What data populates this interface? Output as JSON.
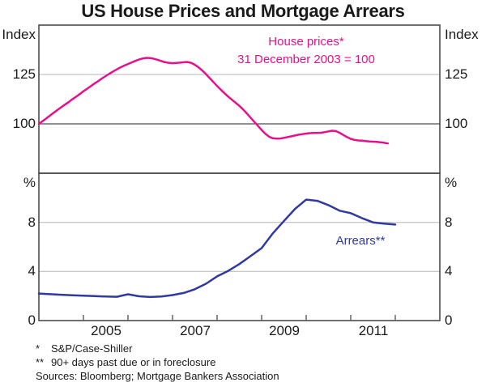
{
  "title": "US House Prices and Mortgage Arrears",
  "colors": {
    "house_prices": "#E8108A",
    "arrears": "#3039A0",
    "grid": "#B5B5B5",
    "axis": "#404040",
    "baseline": "#4D4D4D",
    "text": "#1A1A1A"
  },
  "x_axis": {
    "range": [
      2004,
      2013
    ],
    "ticks": [
      2005,
      2006,
      2007,
      2008,
      2009,
      2010,
      2011,
      2012
    ],
    "labels": [
      {
        "text": "2005",
        "x": 2005.5
      },
      {
        "text": "2007",
        "x": 2007.5
      },
      {
        "text": "2009",
        "x": 2009.5
      },
      {
        "text": "2011",
        "x": 2011.5
      }
    ]
  },
  "chart_data": [
    {
      "type": "line",
      "panel": "top",
      "ylabel": "Index",
      "ylabel_right": "Index",
      "ylim": [
        75,
        150
      ],
      "yticks": [
        100,
        125
      ],
      "baseline": 100,
      "grid": true,
      "series_label": "House prices*",
      "series_sublabel": "31 December 2003 = 100",
      "series": [
        {
          "name": "House prices (31 December 2003 = 100)",
          "color": "#E8108A",
          "x_start": 2004.0,
          "x_step": 0.0833333,
          "values": [
            100.0,
            101.4,
            102.8,
            104.2,
            105.6,
            107.0,
            108.4,
            109.7,
            111.0,
            112.4,
            113.7,
            115.1,
            116.5,
            117.8,
            119.1,
            120.4,
            121.7,
            123.0,
            124.2,
            125.4,
            126.5,
            127.6,
            128.6,
            129.5,
            130.3,
            131.1,
            131.9,
            132.6,
            133.1,
            133.4,
            133.3,
            132.9,
            132.4,
            131.8,
            131.2,
            130.9,
            130.7,
            130.8,
            131.0,
            131.2,
            131.3,
            130.9,
            129.9,
            128.6,
            127.0,
            125.2,
            123.2,
            121.2,
            119.2,
            117.3,
            115.5,
            113.8,
            112.2,
            110.7,
            109.1,
            107.3,
            105.3,
            103.2,
            101.1,
            99.0,
            96.9,
            95.0,
            93.5,
            92.7,
            92.5,
            92.6,
            92.9,
            93.3,
            93.7,
            94.1,
            94.5,
            94.8,
            95.1,
            95.3,
            95.4,
            95.4,
            95.5,
            95.8,
            96.2,
            96.5,
            96.3,
            95.5,
            94.4,
            93.3,
            92.4,
            91.9,
            91.6,
            91.5,
            91.3,
            91.1,
            91.0,
            90.9,
            90.7,
            90.4,
            90.1
          ]
        }
      ]
    },
    {
      "type": "line",
      "panel": "bottom",
      "ylabel": "%",
      "ylabel_right": "%",
      "ylim": [
        0,
        12
      ],
      "yticks": [
        0,
        4,
        8
      ],
      "grid": true,
      "series_label": "Arrears**",
      "series": [
        {
          "name": "Arrears (90+ days past due or in foreclosure)",
          "color": "#3039A0",
          "x_start": 2004.0,
          "x_step": 0.25,
          "values": [
            2.2,
            2.15,
            2.1,
            2.06,
            2.03,
            2.0,
            1.96,
            1.94,
            2.14,
            1.98,
            1.92,
            1.96,
            2.08,
            2.25,
            2.55,
            3.0,
            3.6,
            4.05,
            4.6,
            5.25,
            5.9,
            7.1,
            8.1,
            9.1,
            9.85,
            9.75,
            9.4,
            8.95,
            8.75,
            8.35,
            8.0,
            7.9,
            7.82
          ]
        }
      ]
    }
  ],
  "footnotes": {
    "items": [
      {
        "marker": "*",
        "text": "S&P/Case-Shiller"
      },
      {
        "marker": "**",
        "text": "90+ days past due or in foreclosure"
      }
    ],
    "sources": "Sources: Bloomberg; Mortgage Bankers Association"
  }
}
